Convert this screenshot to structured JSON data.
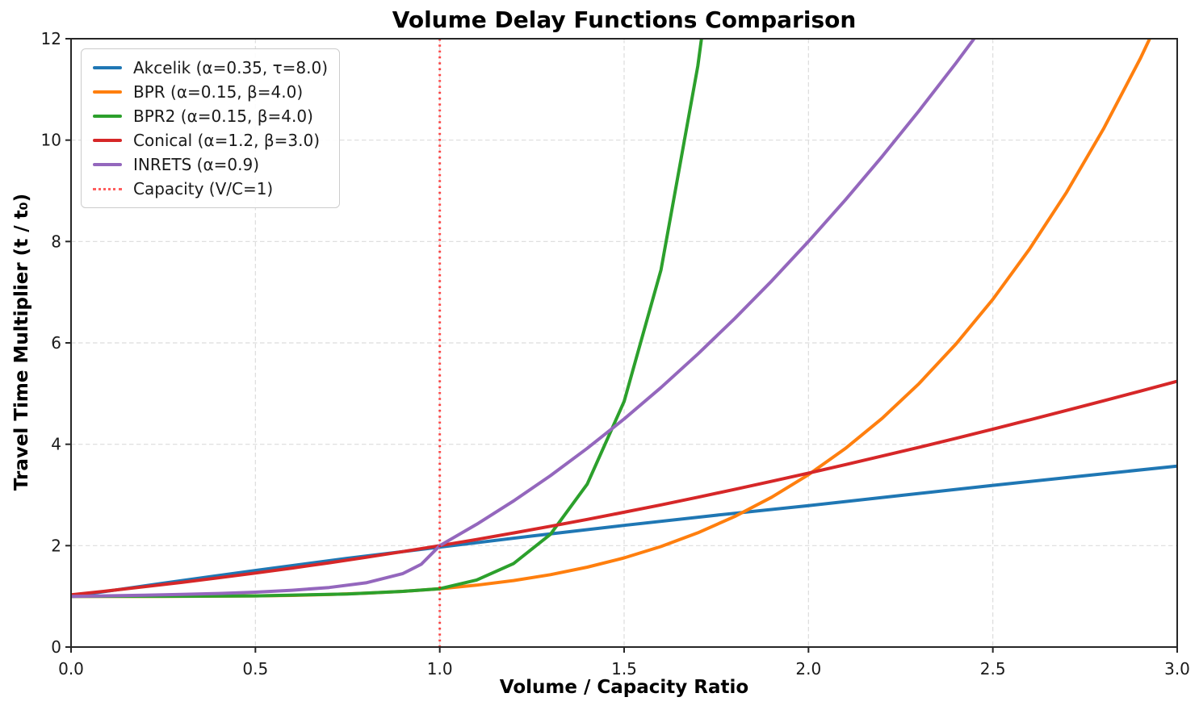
{
  "chart_data": {
    "type": "line",
    "title": "Volume Delay Functions Comparison",
    "xlabel": "Volume / Capacity Ratio",
    "ylabel": "Travel Time Multiplier (t / t₀)",
    "xlim": [
      0.0,
      3.0
    ],
    "ylim": [
      0,
      12
    ],
    "x_ticks": [
      0.0,
      0.5,
      1.0,
      1.5,
      2.0,
      2.5,
      3.0
    ],
    "x_tick_labels": [
      "0.0",
      "0.5",
      "1.0",
      "1.5",
      "2.0",
      "2.5",
      "3.0"
    ],
    "y_ticks": [
      0,
      2,
      4,
      6,
      8,
      10,
      12
    ],
    "y_tick_labels": [
      "0",
      "2",
      "4",
      "6",
      "8",
      "10",
      "12"
    ],
    "grid": "dashed-both-axes",
    "grid_color": "#dcdcdc",
    "background": "#ffffff",
    "legend_position": "upper-left",
    "series": [
      {
        "name": "akcelik",
        "label": "Akcelik (α=0.35, τ=8.0)",
        "color": "#1f77b4",
        "x": [
          0,
          0.25,
          0.5,
          0.75,
          1.0,
          1.25,
          1.5,
          1.75,
          2.0,
          2.25,
          2.5,
          2.75,
          3.0
        ],
        "y": [
          1.0,
          1.26,
          1.51,
          1.75,
          1.97,
          2.19,
          2.4,
          2.6,
          2.79,
          2.99,
          3.19,
          3.38,
          3.57
        ]
      },
      {
        "name": "bpr",
        "label": "BPR (α=0.15, β=4.0)",
        "color": "#ff7f0e",
        "x": [
          0,
          0.1,
          0.2,
          0.3,
          0.4,
          0.5,
          0.6,
          0.7,
          0.8,
          0.9,
          1.0,
          1.1,
          1.2,
          1.3,
          1.4,
          1.5,
          1.6,
          1.7,
          1.8,
          1.9,
          2.0,
          2.1,
          2.2,
          2.3,
          2.4,
          2.5,
          2.6,
          2.7,
          2.8,
          2.9,
          3.0
        ],
        "y": [
          1.0,
          1.0,
          1.0,
          1.001,
          1.004,
          1.009,
          1.019,
          1.036,
          1.061,
          1.098,
          1.15,
          1.22,
          1.311,
          1.428,
          1.576,
          1.759,
          1.983,
          2.253,
          2.575,
          2.955,
          3.4,
          3.917,
          4.514,
          5.198,
          5.977,
          6.859,
          7.855,
          8.972,
          10.22,
          11.609,
          13.15
        ]
      },
      {
        "name": "bpr2",
        "label": "BPR2 (α=0.15, β=4.0)",
        "color": "#2ca02c",
        "x": [
          0,
          0.25,
          0.5,
          0.75,
          0.9,
          1.0,
          1.1,
          1.2,
          1.3,
          1.4,
          1.5,
          1.6,
          1.7,
          1.75
        ],
        "y": [
          1.0,
          1.001,
          1.009,
          1.047,
          1.098,
          1.15,
          1.322,
          1.645,
          2.224,
          3.214,
          4.844,
          7.442,
          11.464,
          14.19
        ]
      },
      {
        "name": "conical",
        "label": "Conical (α=1.2, β=3.0)",
        "color": "#d62728",
        "x": [
          0,
          0.1,
          0.2,
          0.3,
          0.4,
          0.5,
          0.6,
          0.7,
          0.8,
          0.9,
          1.0,
          1.1,
          1.2,
          1.3,
          1.4,
          1.5,
          1.6,
          1.7,
          1.8,
          1.9,
          2.0,
          2.1,
          2.2,
          2.3,
          2.4,
          2.5,
          2.6,
          2.7,
          2.8,
          2.9,
          3.0
        ],
        "y": [
          1.031,
          1.108,
          1.19,
          1.275,
          1.365,
          1.459,
          1.558,
          1.662,
          1.77,
          1.882,
          2.0,
          2.122,
          2.25,
          2.382,
          2.518,
          2.659,
          2.805,
          2.955,
          3.11,
          3.269,
          3.431,
          3.598,
          3.768,
          3.941,
          4.118,
          4.299,
          4.482,
          4.668,
          4.857,
          5.048,
          5.242
        ]
      },
      {
        "name": "inrets",
        "label": "INRETS (α=0.9)",
        "color": "#9467bd",
        "x": [
          0,
          0.1,
          0.2,
          0.3,
          0.4,
          0.5,
          0.6,
          0.7,
          0.8,
          0.9,
          0.95,
          1.0,
          1.1,
          1.2,
          1.3,
          1.4,
          1.5,
          1.6,
          1.7,
          1.8,
          1.9,
          2.0,
          2.1,
          2.2,
          2.3,
          2.4,
          2.5
        ],
        "y": [
          1.0,
          1.01,
          1.022,
          1.038,
          1.057,
          1.083,
          1.12,
          1.175,
          1.267,
          1.45,
          1.633,
          2.0,
          2.42,
          2.88,
          3.38,
          3.92,
          4.5,
          5.12,
          5.78,
          6.48,
          7.22,
          8.0,
          8.82,
          9.68,
          10.58,
          11.52,
          12.5
        ]
      }
    ],
    "capacity_line": {
      "label": "Capacity (V/C=1)",
      "x": 1.0,
      "color": "#ff0000",
      "opacity": 0.7,
      "style": "dotted"
    }
  }
}
